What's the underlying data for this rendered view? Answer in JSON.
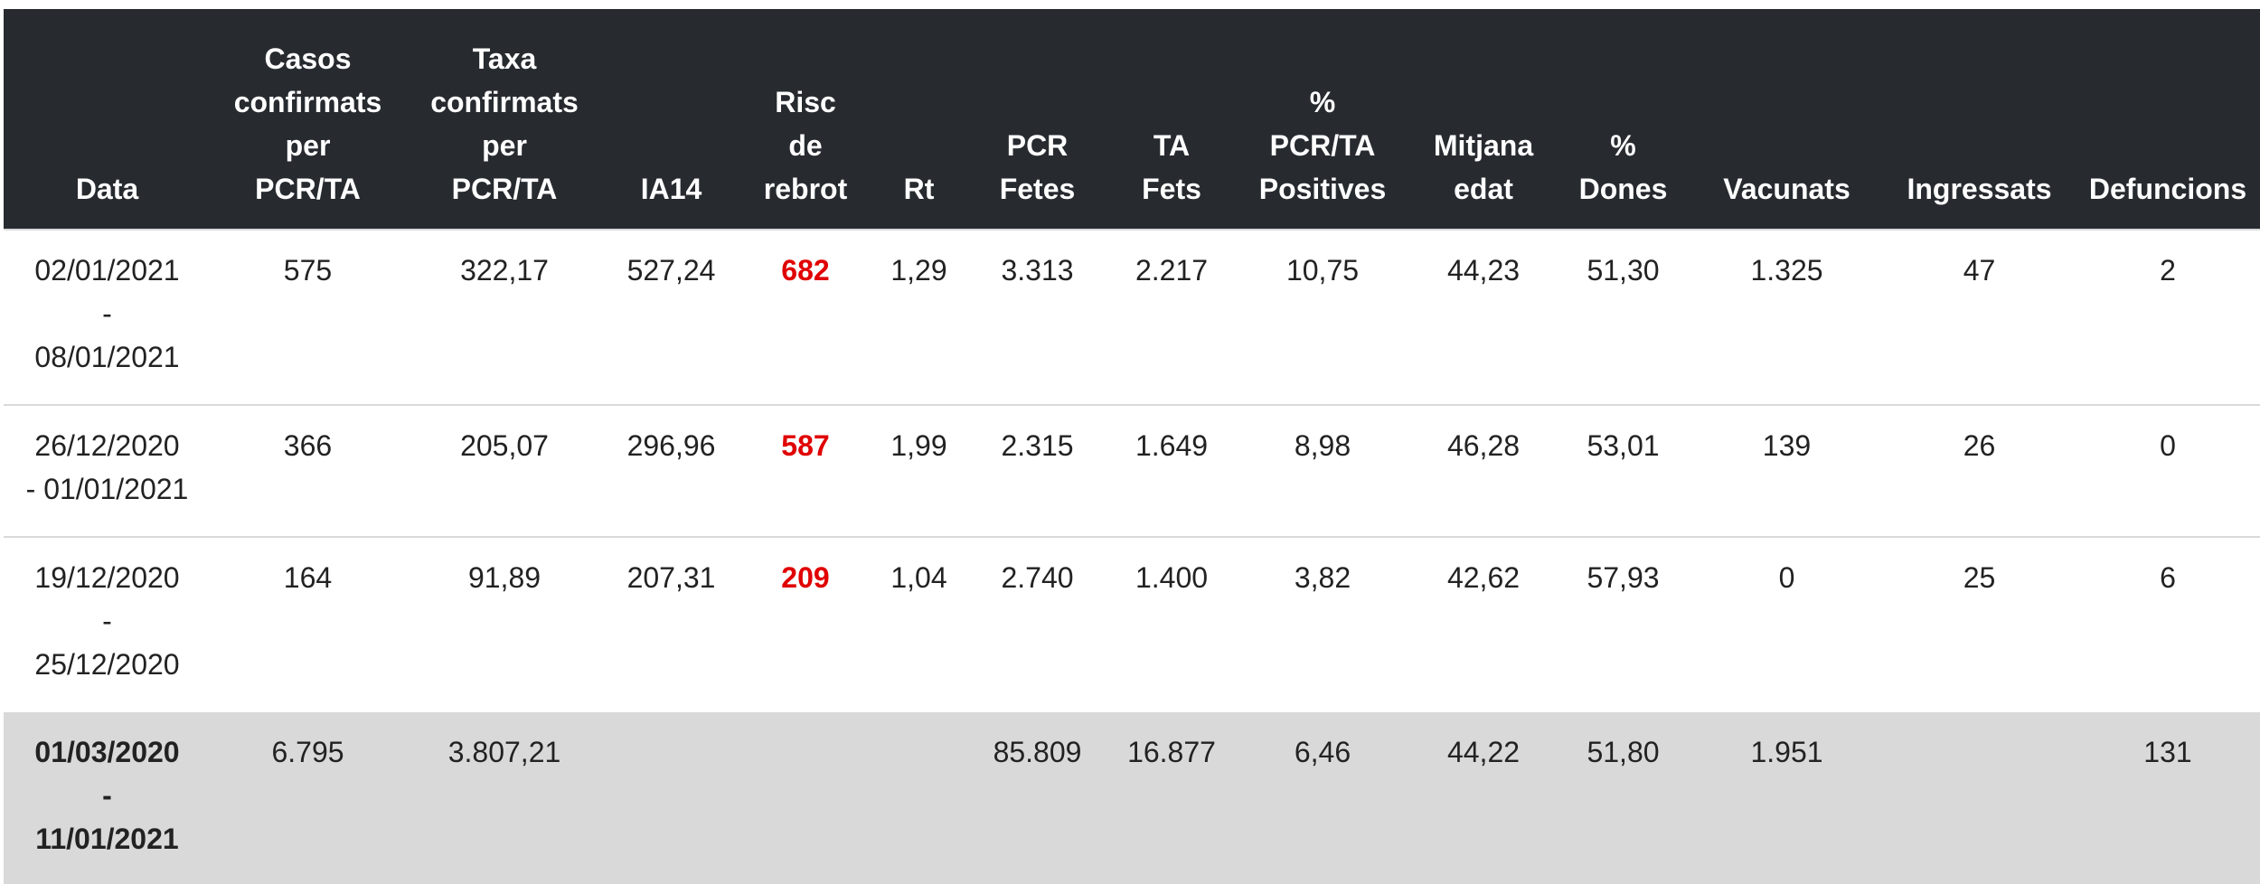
{
  "headers": {
    "data": "Data",
    "casos": [
      "Casos",
      "confirmats",
      "per",
      "PCR/TA"
    ],
    "taxa": [
      "Taxa",
      "confirmats",
      "per",
      "PCR/TA"
    ],
    "ia14": "IA14",
    "risc": [
      "Risc",
      "de",
      "rebrot"
    ],
    "rt": "Rt",
    "pcr": [
      "PCR",
      "Fetes"
    ],
    "ta": [
      "TA",
      "Fets"
    ],
    "positives": [
      "%",
      "PCR/TA",
      "Positives"
    ],
    "edat": [
      "Mitjana",
      "edat"
    ],
    "dones": [
      "%",
      "Dones"
    ],
    "vacunats": "Vacunats",
    "ingressats": "Ingressats",
    "defuncions": "Defuncions"
  },
  "rows": [
    {
      "date": [
        "02/01/2021",
        "-",
        "08/01/2021"
      ],
      "casos": "575",
      "taxa": "322,17",
      "ia14": "527,24",
      "risc": "682",
      "rt": "1,29",
      "pcr": "3.313",
      "ta": "2.217",
      "positives": "10,75",
      "edat": "44,23",
      "dones": "51,30",
      "vacunats": "1.325",
      "ingressats": "47",
      "defuncions": "2"
    },
    {
      "date": [
        "26/12/2020",
        "- 01/01/2021"
      ],
      "casos": "366",
      "taxa": "205,07",
      "ia14": "296,96",
      "risc": "587",
      "rt": "1,99",
      "pcr": "2.315",
      "ta": "1.649",
      "positives": "8,98",
      "edat": "46,28",
      "dones": "53,01",
      "vacunats": "139",
      "ingressats": "26",
      "defuncions": "0"
    },
    {
      "date": [
        "19/12/2020",
        "-",
        "25/12/2020"
      ],
      "casos": "164",
      "taxa": "91,89",
      "ia14": "207,31",
      "risc": "209",
      "rt": "1,04",
      "pcr": "2.740",
      "ta": "1.400",
      "positives": "3,82",
      "edat": "42,62",
      "dones": "57,93",
      "vacunats": "0",
      "ingressats": "25",
      "defuncions": "6"
    }
  ],
  "total": {
    "date": [
      "01/03/2020",
      "-",
      "11/01/2021"
    ],
    "casos": "6.795",
    "taxa": "3.807,21",
    "ia14": "",
    "risc": "",
    "rt": "",
    "pcr": "85.809",
    "ta": "16.877",
    "positives": "6,46",
    "edat": "44,22",
    "dones": "51,80",
    "vacunats": "1.951",
    "ingressats": "",
    "defuncions": "131"
  },
  "colors": {
    "header_bg": "#272b30",
    "risc_text": "#e00000",
    "total_bg": "#d9d9d9"
  }
}
